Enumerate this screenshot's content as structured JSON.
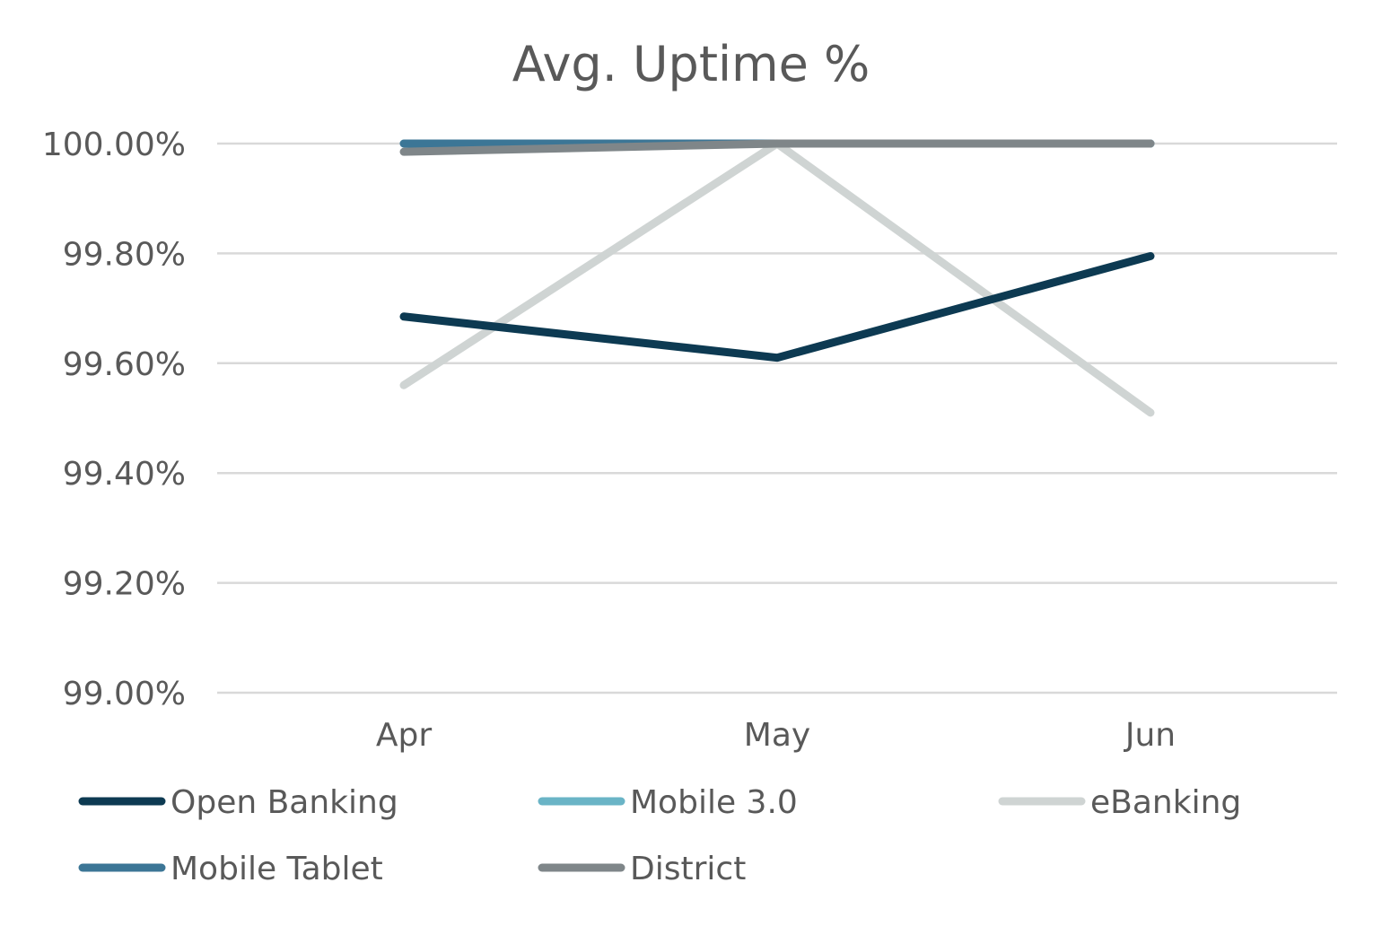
{
  "chart_data": {
    "type": "line",
    "title": "Avg. Uptime %",
    "xlabel": "",
    "ylabel": "",
    "categories": [
      "Apr",
      "May",
      "Jun"
    ],
    "ylim": [
      99.0,
      100.0
    ],
    "yticks": [
      99.0,
      99.2,
      99.4,
      99.6,
      99.8,
      100.0
    ],
    "ytick_labels": [
      "99.00%",
      "99.20%",
      "99.40%",
      "99.60%",
      "99.80%",
      "100.00%"
    ],
    "grid": true,
    "legend_position": "bottom",
    "series": [
      {
        "name": "Open Banking",
        "color": "#0d3a52",
        "values": [
          99.685,
          99.61,
          99.795
        ]
      },
      {
        "name": "Mobile 3.0",
        "color": "#6ab4c6",
        "values": [
          100.0,
          100.0,
          100.0
        ]
      },
      {
        "name": "eBanking",
        "color": "#cfd4d3",
        "values": [
          99.56,
          100.0,
          99.51
        ]
      },
      {
        "name": "Mobile Tablet",
        "color": "#3c7696",
        "values": [
          100.0,
          100.0,
          100.0
        ]
      },
      {
        "name": "District",
        "color": "#7f8689",
        "values": [
          99.985,
          100.0,
          100.0
        ]
      }
    ]
  }
}
